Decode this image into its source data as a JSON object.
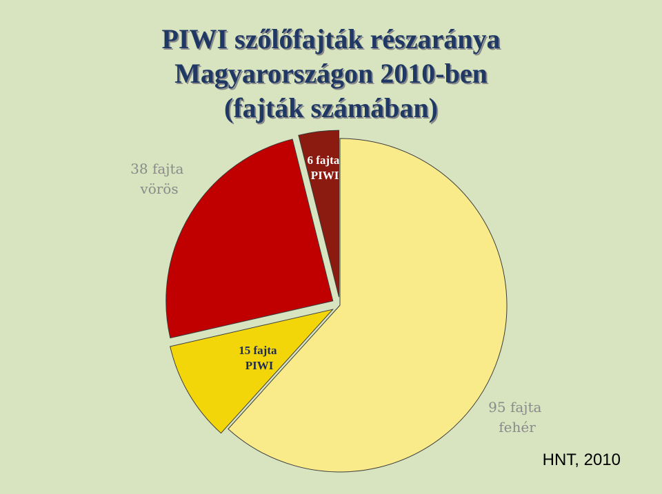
{
  "title": {
    "line1": "PIWI szőlőfajták részaránya",
    "line2": "Magyarországon 2010-ben",
    "line3": "(fajták számában)"
  },
  "source": "HNT, 2010",
  "colors": {
    "background": "#d8e4bf",
    "title": "#1f3864",
    "feher": "#f9eb8a",
    "feher_piwi": "#f3d60a",
    "voros": "#c00000",
    "voros_piwi": "#8b1a10"
  },
  "chart_data": {
    "type": "pie",
    "title": "PIWI szőlőfajták részaránya Magyarországon 2010-ben (fajták számában)",
    "slices": [
      {
        "label_line1": "95 fajta",
        "label_line2": "fehér",
        "value": 95,
        "color": "#f9eb8a"
      },
      {
        "label_line1": "15 fajta",
        "label_line2": "PIWI",
        "value": 15,
        "color": "#f3d60a"
      },
      {
        "label_line1": "38 fajta",
        "label_line2": "vörös",
        "value": 38,
        "color": "#c00000"
      },
      {
        "label_line1": "6 fajta",
        "label_line2": "PIWI",
        "value": 6,
        "color": "#8b1a10"
      }
    ]
  }
}
